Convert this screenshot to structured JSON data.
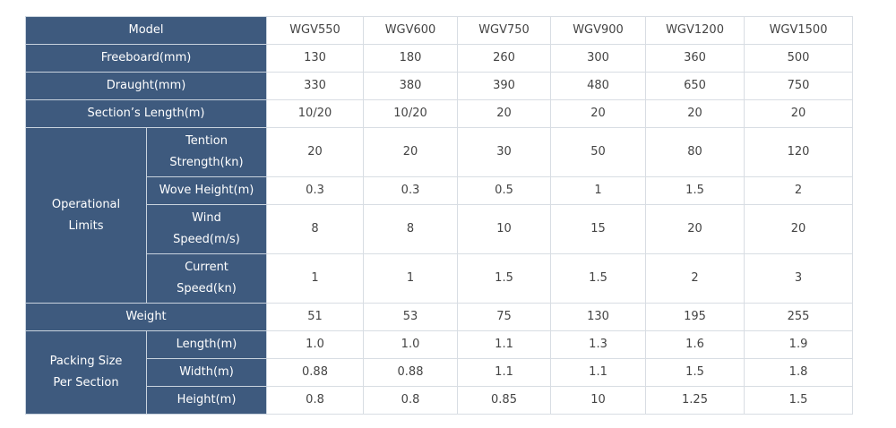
{
  "table": {
    "header": {
      "label": "Model",
      "models": [
        "WGV550",
        "WGV600",
        "WGV750",
        "WGV900",
        "WGV1200",
        "WGV1500"
      ]
    },
    "rows": [
      {
        "label": "Freeboard(mm)",
        "values": [
          "130",
          "180",
          "260",
          "300",
          "360",
          "500"
        ]
      },
      {
        "label": "Draught(mm)",
        "values": [
          "330",
          "380",
          "390",
          "480",
          "650",
          "750"
        ]
      },
      {
        "label": "Section’s Length(m)",
        "values": [
          "10/20",
          "10/20",
          "20",
          "20",
          "20",
          "20"
        ]
      },
      {
        "group": "Operational Limits",
        "rows": [
          {
            "label": "Tention Strength(kn)",
            "values": [
              "20",
              "20",
              "30",
              "50",
              "80",
              "120"
            ]
          },
          {
            "label": "Wove Height(m)",
            "values": [
              "0.3",
              "0.3",
              "0.5",
              "1",
              "1.5",
              "2"
            ]
          },
          {
            "label": "Wind Speed(m/s)",
            "values": [
              "8",
              "8",
              "10",
              "15",
              "20",
              "20"
            ]
          },
          {
            "label": "Current Speed(kn)",
            "values": [
              "1",
              "1",
              "1.5",
              "1.5",
              "2",
              "3"
            ]
          }
        ]
      },
      {
        "label": "Weight",
        "values": [
          "51",
          "53",
          "75",
          "130",
          "195",
          "255"
        ]
      },
      {
        "group": "Packing Size Per Section",
        "rows": [
          {
            "label": "Length(m)",
            "values": [
              "1.0",
              "1.0",
              "1.1",
              "1.3",
              "1.6",
              "1.9"
            ]
          },
          {
            "label": "Width(m)",
            "values": [
              "0.88",
              "0.88",
              "1.1",
              "1.1",
              "1.5",
              "1.8"
            ]
          },
          {
            "label": "Height(m)",
            "values": [
              "0.8",
              "0.8",
              "0.85",
              "10",
              "1.25",
              "1.5"
            ]
          }
        ]
      }
    ]
  }
}
